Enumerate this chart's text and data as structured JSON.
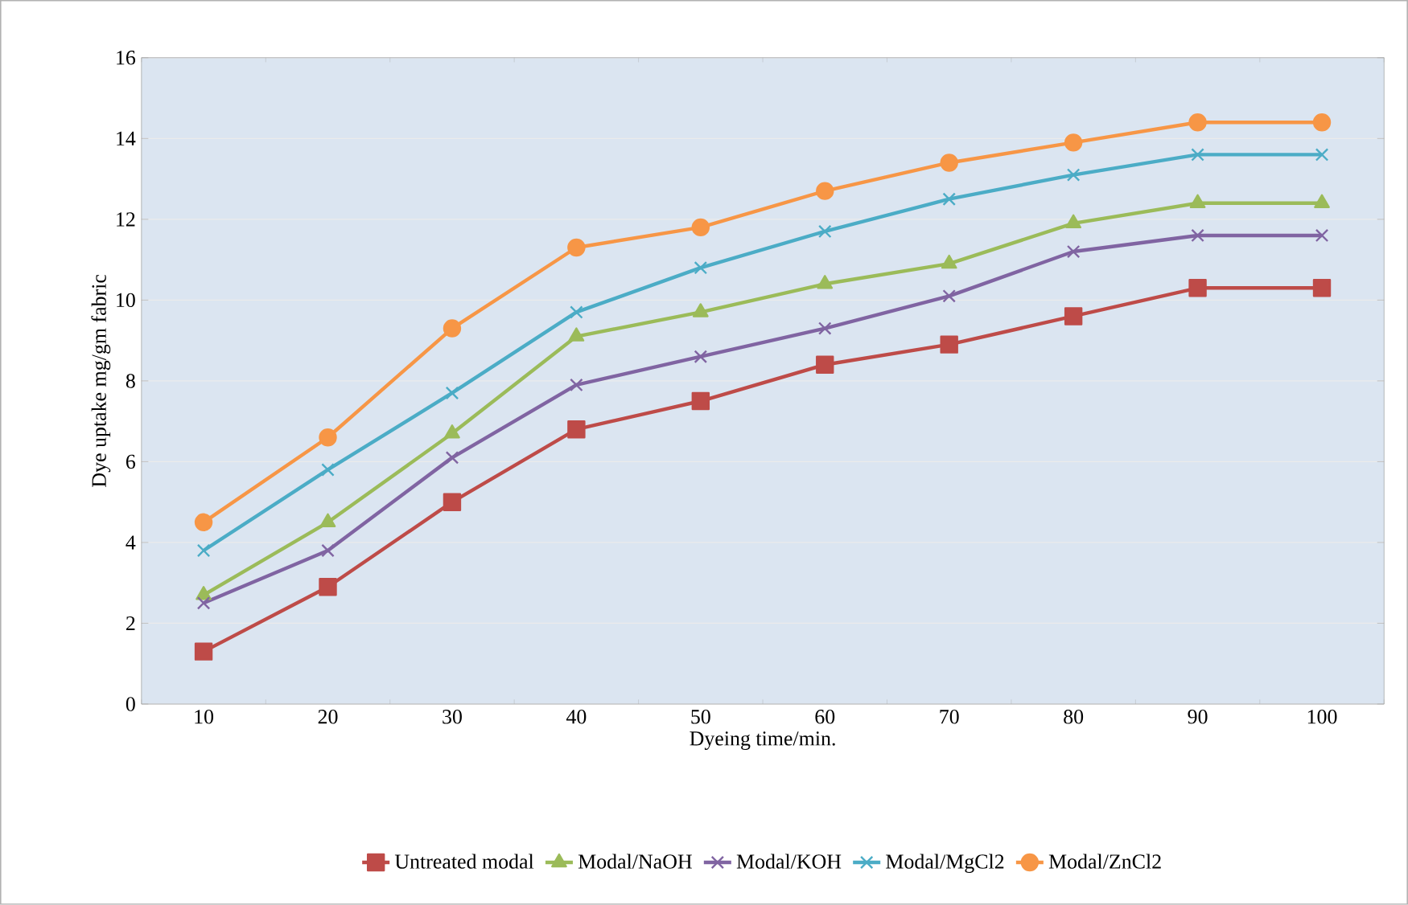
{
  "chart_data": {
    "type": "line",
    "xlabel": "Dyeing time/min.",
    "ylabel": "Dye uptake mg/gm fabric",
    "categories": [
      "10",
      "20",
      "30",
      "40",
      "50",
      "60",
      "70",
      "80",
      "90",
      "100"
    ],
    "ylim": [
      0,
      16
    ],
    "yticks": [
      0,
      2,
      4,
      6,
      8,
      10,
      12,
      14,
      16
    ],
    "grid": "y",
    "legend": "bottom",
    "series": [
      {
        "name": "Untreated modal",
        "color": "#be4b48",
        "marker": "square",
        "values": [
          1.3,
          2.9,
          5.0,
          6.8,
          7.5,
          8.4,
          8.9,
          9.6,
          10.3,
          10.3
        ]
      },
      {
        "name": "Modal/NaOH",
        "color": "#9bbb59",
        "marker": "triangle",
        "values": [
          2.7,
          4.5,
          6.7,
          9.1,
          9.7,
          10.4,
          10.9,
          11.9,
          12.4,
          12.4
        ]
      },
      {
        "name": "Modal/KOH",
        "color": "#8064a2",
        "marker": "cross",
        "values": [
          2.5,
          3.8,
          6.1,
          7.9,
          8.6,
          9.3,
          10.1,
          11.2,
          11.6,
          11.6
        ]
      },
      {
        "name": "Modal/MgCl2",
        "color": "#4bacc6",
        "marker": "cross",
        "values": [
          3.8,
          5.8,
          7.7,
          9.7,
          10.8,
          11.7,
          12.5,
          13.1,
          13.6,
          13.6
        ]
      },
      {
        "name": "Modal/ZnCl2",
        "color": "#f79646",
        "marker": "circle",
        "values": [
          4.5,
          6.6,
          9.3,
          11.3,
          11.8,
          12.7,
          13.4,
          13.9,
          14.4,
          14.4
        ]
      }
    ]
  }
}
